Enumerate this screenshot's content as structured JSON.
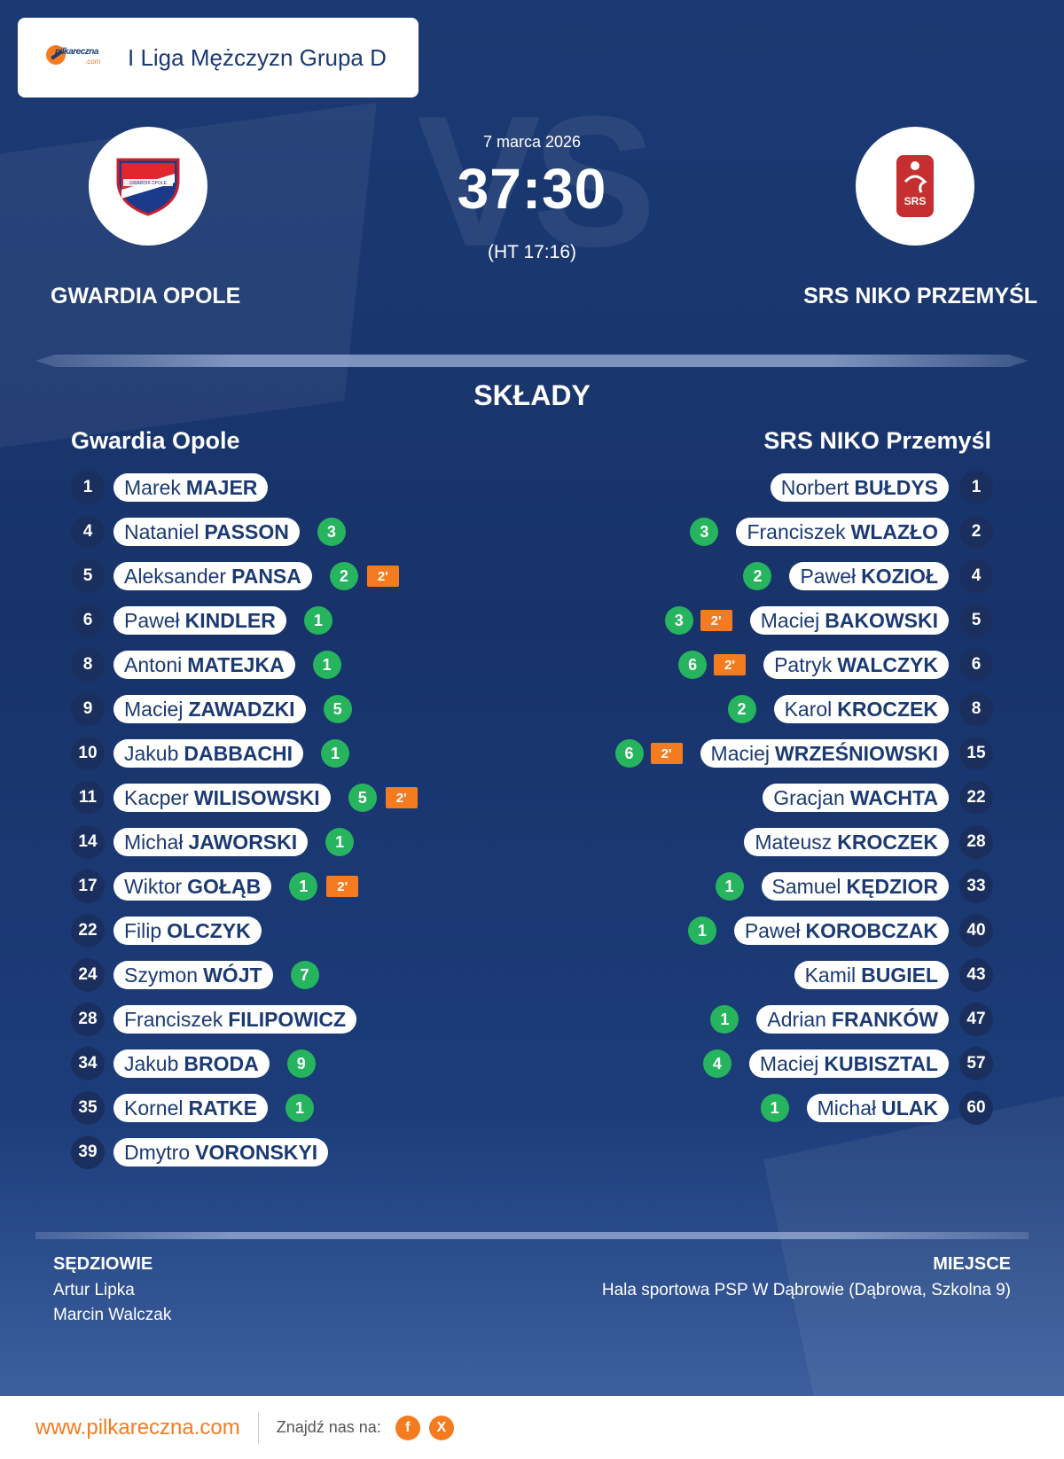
{
  "header": {
    "league": "I Liga Mężczyzn Grupa D",
    "logo_text": "pilkareczna",
    "logo_sub": ".com"
  },
  "match": {
    "date": "7 marca 2026",
    "score": "37:30",
    "halftime": "(HT 17:16)",
    "vs_bg": "VS",
    "home_team": "GWARDIA OPOLE",
    "away_team": "SRS NIKO PRZEMYŚL"
  },
  "home_logo_text": "GWARDIA OPOLE",
  "away_logo_text": "SRS",
  "lineups": {
    "title": "SKŁADY",
    "home_title": "Gwardia Opole",
    "away_title": "SRS NIKO Przemyśl",
    "home": [
      {
        "num": "1",
        "first": "Marek",
        "last": "MAJER",
        "goals": "",
        "pen": ""
      },
      {
        "num": "4",
        "first": "Nataniel",
        "last": "PASSON",
        "goals": "3",
        "pen": ""
      },
      {
        "num": "5",
        "first": "Aleksander",
        "last": "PANSA",
        "goals": "2",
        "pen": "2'"
      },
      {
        "num": "6",
        "first": "Paweł",
        "last": "KINDLER",
        "goals": "1",
        "pen": ""
      },
      {
        "num": "8",
        "first": "Antoni",
        "last": "MATEJKA",
        "goals": "1",
        "pen": ""
      },
      {
        "num": "9",
        "first": "Maciej",
        "last": "ZAWADZKI",
        "goals": "5",
        "pen": ""
      },
      {
        "num": "10",
        "first": "Jakub",
        "last": "DABBACHI",
        "goals": "1",
        "pen": ""
      },
      {
        "num": "11",
        "first": "Kacper",
        "last": "WILISOWSKI",
        "goals": "5",
        "pen": "2'"
      },
      {
        "num": "14",
        "first": "Michał",
        "last": "JAWORSKI",
        "goals": "1",
        "pen": ""
      },
      {
        "num": "17",
        "first": "Wiktor",
        "last": "GOŁĄB",
        "goals": "1",
        "pen": "2'"
      },
      {
        "num": "22",
        "first": "Filip",
        "last": "OLCZYK",
        "goals": "",
        "pen": ""
      },
      {
        "num": "24",
        "first": "Szymon",
        "last": "WÓJT",
        "goals": "7",
        "pen": ""
      },
      {
        "num": "28",
        "first": "Franciszek",
        "last": "FILIPOWICZ",
        "goals": "",
        "pen": ""
      },
      {
        "num": "34",
        "first": "Jakub",
        "last": "BRODA",
        "goals": "9",
        "pen": ""
      },
      {
        "num": "35",
        "first": "Kornel",
        "last": "RATKE",
        "goals": "1",
        "pen": ""
      },
      {
        "num": "39",
        "first": "Dmytro",
        "last": "VORONSKYI",
        "goals": "",
        "pen": ""
      }
    ],
    "away": [
      {
        "num": "1",
        "first": "Norbert",
        "last": "BUŁDYS",
        "goals": "",
        "pen": ""
      },
      {
        "num": "2",
        "first": "Franciszek",
        "last": "WLAZŁO",
        "goals": "3",
        "pen": ""
      },
      {
        "num": "4",
        "first": "Paweł",
        "last": "KOZIOŁ",
        "goals": "2",
        "pen": ""
      },
      {
        "num": "5",
        "first": "Maciej",
        "last": "BAKOWSKI",
        "goals": "3",
        "pen": "2'"
      },
      {
        "num": "6",
        "first": "Patryk",
        "last": "WALCZYK",
        "goals": "6",
        "pen": "2'"
      },
      {
        "num": "8",
        "first": "Karol",
        "last": "KROCZEK",
        "goals": "2",
        "pen": ""
      },
      {
        "num": "15",
        "first": "Maciej",
        "last": "WRZEŚNIOWSKI",
        "goals": "6",
        "pen": "2'"
      },
      {
        "num": "22",
        "first": "Gracjan",
        "last": "WACHTA",
        "goals": "",
        "pen": ""
      },
      {
        "num": "28",
        "first": "Mateusz",
        "last": "KROCZEK",
        "goals": "",
        "pen": ""
      },
      {
        "num": "33",
        "first": "Samuel",
        "last": "KĘDZIOR",
        "goals": "1",
        "pen": ""
      },
      {
        "num": "40",
        "first": "Paweł",
        "last": "KOROBCZAK",
        "goals": "1",
        "pen": ""
      },
      {
        "num": "43",
        "first": "Kamil",
        "last": "BUGIEL",
        "goals": "",
        "pen": ""
      },
      {
        "num": "47",
        "first": "Adrian",
        "last": "FRANKÓW",
        "goals": "1",
        "pen": ""
      },
      {
        "num": "57",
        "first": "Maciej",
        "last": "KUBISZTAL",
        "goals": "4",
        "pen": ""
      },
      {
        "num": "60",
        "first": "Michał",
        "last": "ULAK",
        "goals": "1",
        "pen": ""
      }
    ]
  },
  "referees": {
    "title": "SĘDZIOWIE",
    "names": [
      "Artur Lipka",
      "Marcin Walczak"
    ]
  },
  "venue": {
    "title": "MIEJSCE",
    "name": "Hala sportowa PSP W Dąbrowie (Dąbrowa, Szkolna 9)"
  },
  "footer": {
    "site": "www.pilkareczna.com",
    "find_us": "Znajdź nas na:",
    "social": [
      "f",
      "X"
    ]
  },
  "colors": {
    "accent": "#f47b20",
    "navy": "#1b3a73",
    "goal": "#27b45e"
  }
}
